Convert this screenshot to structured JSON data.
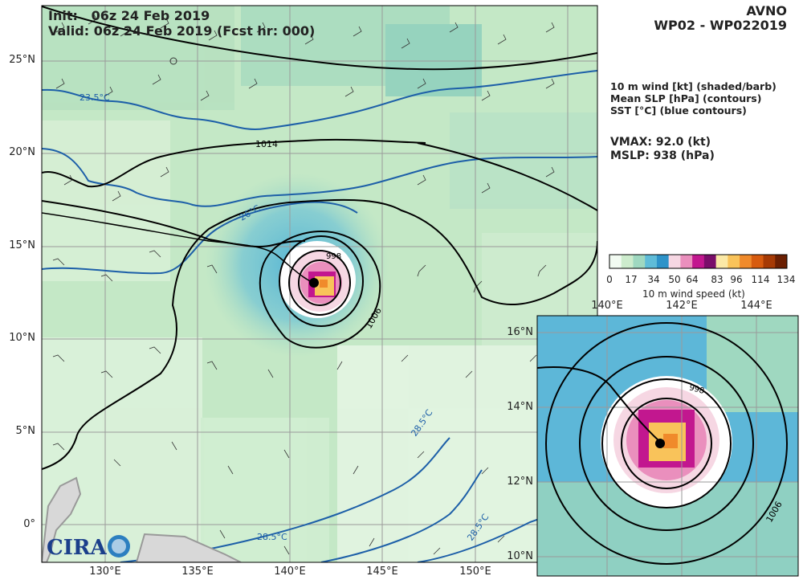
{
  "header": {
    "init_label": "Init:",
    "init_time": "06z 24 Feb 2019",
    "valid_line": "Valid: 06z 24 Feb 2019 (Fcst hr: 000)",
    "model": "AVNO",
    "storm": "WP02 - WP022019"
  },
  "legend_text": {
    "line1": "10 m wind [kt] (shaded/barb)",
    "line2": "Mean SLP [hPa] (contours)",
    "line3": "SST [°C] (blue contours)"
  },
  "stats": {
    "vmax": "VMAX:  92.0 (kt)",
    "mslp": "MSLP:  938 (hPa)"
  },
  "colorbar": {
    "ticks": [
      "0",
      "17",
      "34",
      "50",
      "64",
      "83",
      "96",
      "114",
      "134"
    ],
    "title": "10 m wind speed (kt)",
    "colors": [
      "#f2fbf2",
      "#cdeccd",
      "#9fd8c0",
      "#5fbcd8",
      "#2e93c9",
      "#f6d7e3",
      "#ea8fbd",
      "#c2178f",
      "#7a0e6a",
      "#fbe9a6",
      "#f9c35a",
      "#f08a2b",
      "#d75b0f",
      "#a63a05",
      "#6b1f02"
    ]
  },
  "main_map": {
    "lon_labels": [
      "130°E",
      "135°E",
      "140°E",
      "145°E",
      "150°E"
    ],
    "lat_labels": [
      "25°N",
      "20°N",
      "15°N",
      "10°N",
      "5°N",
      "0°"
    ],
    "slp_labels": [
      "1014",
      "998",
      "1006"
    ],
    "sst_labels": [
      "23.5°C",
      "26°C",
      "28.5°C",
      "28.5°C",
      "28.5°C"
    ],
    "center": {
      "lon": 141.3,
      "lat": 13.1
    }
  },
  "inset_map": {
    "lon_labels": [
      "140°E",
      "142°E",
      "144°E"
    ],
    "lat_labels": [
      "16°N",
      "14°N",
      "12°N",
      "10°N"
    ],
    "slp_labels": [
      "998",
      "1006"
    ]
  },
  "logo": {
    "text": "CIRA"
  }
}
